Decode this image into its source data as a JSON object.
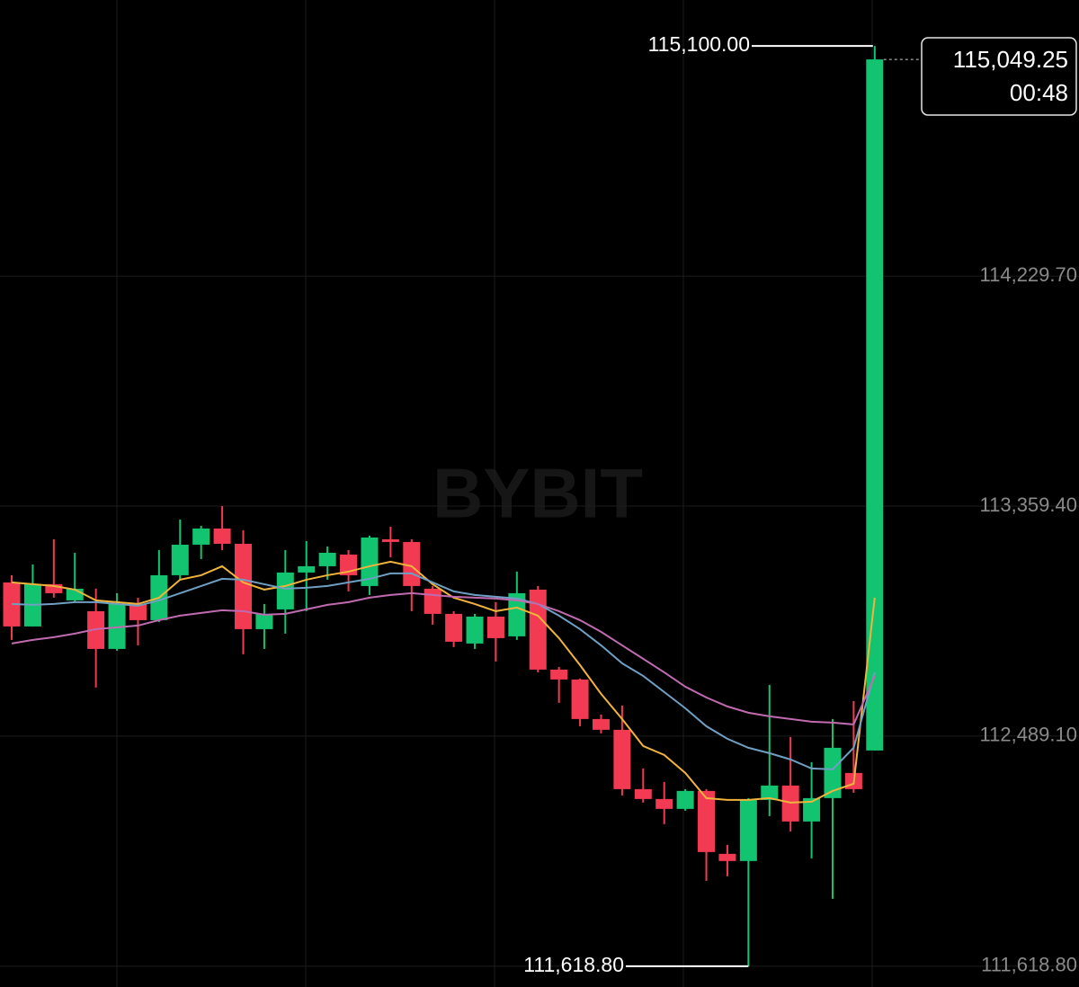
{
  "chart_data": {
    "type": "candlestick",
    "watermark": "BYBIT",
    "up_color": "#12c46f",
    "down_color": "#f23a52",
    "ylim": [
      111540,
      115274
    ],
    "yticks": [
      {
        "value": 111618.8,
        "label": "111,618.80"
      },
      {
        "value": 112489.1,
        "label": "112,489.10"
      },
      {
        "value": 113359.4,
        "label": "113,359.40"
      },
      {
        "value": 114229.7,
        "label": "114,229.70"
      }
    ],
    "grid": true,
    "open": [
      113070.6,
      112904,
      113064,
      113002.6,
      112961.8,
      112819,
      112989,
      112927.8,
      113097.8,
      113213.4,
      113274.6,
      113216.8,
      112893.8,
      112968.6,
      113108,
      113131.8,
      113176,
      113057,
      113233.8,
      113223.6,
      113046.8,
      112951.6,
      112839.4,
      112941.4,
      112866.6,
      113043.4,
      112740.8,
      112703.4,
      112553.8,
      112513,
      112288.6,
      112251.2,
      112213.8,
      112281.8,
      112043.8,
      112016.6,
      112247.8,
      112302.2,
      112166.2,
      112254.6,
      112349.8,
      112434.8
    ],
    "high": [
      113097.8,
      113138.6,
      113233.8,
      113182.8,
      113046.8,
      113029.8,
      113012.8,
      113193,
      113308.6,
      113284.8,
      113359.6,
      113267.8,
      112989,
      113193,
      113227,
      113206.6,
      113193,
      113247.4,
      113281.4,
      113233.8,
      113057,
      112961.8,
      112951.6,
      112995.8,
      113111.4,
      113057,
      112751,
      112706.8,
      112570.8,
      112604.8,
      112366.8,
      112315.8,
      112288.6,
      112288.6,
      112077.8,
      112254.6,
      112683,
      112485.8,
      112390.6,
      112553.8,
      112621.8,
      115100
    ],
    "low": [
      112853,
      112904,
      113012.8,
      112995.8,
      112672.8,
      112812.2,
      112832.6,
      112921,
      113080.8,
      113159,
      113193,
      112798.6,
      112819,
      112876.8,
      112961.8,
      113080.8,
      113036.6,
      113023,
      113165.8,
      112961.8,
      112910.8,
      112825.8,
      112819,
      112771.4,
      112853,
      112730.6,
      112615,
      112526.6,
      112499.4,
      112264.8,
      112237.6,
      112156,
      112207,
      111941.8,
      111958.8,
      111618.8,
      112186.6,
      112128.8,
      112026.8,
      111873.8,
      112275,
      112434.8
    ],
    "close": [
      112904,
      113063.8,
      113029.8,
      113046.8,
      112819,
      112989,
      112927.8,
      113097.8,
      113213.4,
      113274.6,
      113216.8,
      112893.8,
      112951.6,
      113108,
      113131.8,
      113182.8,
      113097.8,
      113240.6,
      113223.6,
      113057,
      112951.6,
      112846.2,
      112941.4,
      112859.8,
      113029.8,
      112740.8,
      112703.4,
      112553.8,
      112513,
      112288.6,
      112251.2,
      112213.8,
      112281.8,
      112050.6,
      112016.6,
      112247.8,
      112302.2,
      112166.2,
      112254.6,
      112445,
      112288.6,
      115049.25
    ],
    "ma_lines": [
      {
        "color": "#f0b43c",
        "values": [
          113070.6,
          113063.8,
          113057,
          113043.4,
          113002.6,
          112995.8,
          112989,
          113012.8,
          113080.8,
          113097.8,
          113131.8,
          113070.6,
          113043.4,
          113057,
          113080.8,
          113097.8,
          113111.4,
          113131.8,
          113148.8,
          113131.8,
          113063.8,
          113012.8,
          112989,
          112961.8,
          112975.4,
          112944.8,
          112859.8,
          112757.8,
          112649,
          112553.8,
          112451.8,
          112417.8,
          112349.8,
          112254.6,
          112247.8,
          112247.8,
          112254.6,
          112237.6,
          112241,
          112281.8,
          112309,
          113012.8
        ]
      },
      {
        "color": "#6f9fc2",
        "values": [
          112989,
          112985.6,
          112989,
          112995.8,
          112995.8,
          112989,
          112982.2,
          113002.6,
          113029.8,
          113057,
          113084.2,
          113080.8,
          113063.8,
          113046.8,
          113050.2,
          113057,
          113070.6,
          113084.2,
          113104.6,
          113104.6,
          113070.6,
          113036.6,
          113023,
          113016.2,
          113009.4,
          112989,
          112944.8,
          112893.8,
          112832.6,
          112764.6,
          112717,
          112655.8,
          112594.6,
          112526.6,
          112479,
          112445,
          112424.6,
          112400.8,
          112366.8,
          112363.4,
          112445,
          112730.6
        ]
      },
      {
        "color": "#c06ab0",
        "values": [
          112839.4,
          112853,
          112863.2,
          112876.8,
          112893.8,
          112900.6,
          112907.4,
          112927.8,
          112944.8,
          112955,
          112965.2,
          112961.8,
          112948.2,
          112951.6,
          112968.6,
          112985.6,
          112995.8,
          113012.8,
          113023,
          113029.8,
          113023,
          113016.2,
          113012.8,
          113009.4,
          113002.6,
          112989,
          112961.8,
          112927.8,
          112883.6,
          112832.6,
          112781.6,
          112730.6,
          112676.2,
          112635.4,
          112601.4,
          112577.6,
          112564,
          112553.8,
          112543.6,
          112540.2,
          112533.4,
          112717
        ]
      }
    ],
    "high_marker": {
      "value": 115100,
      "label": "115,100.00"
    },
    "low_marker": {
      "value": 111618.8,
      "label": "111,618.80"
    },
    "last_price": {
      "value": 115049.25,
      "label": "115,049.25"
    },
    "countdown": "00:48"
  }
}
